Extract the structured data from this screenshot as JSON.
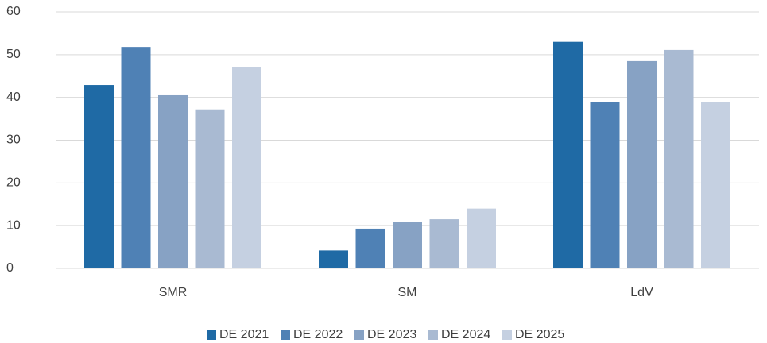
{
  "chart_data": {
    "type": "bar",
    "categories": [
      "SMR",
      "SM",
      "LdV"
    ],
    "series": [
      {
        "name": "DE 2021",
        "color": "#1f6aa5",
        "values": [
          42.9,
          4.2,
          53
        ]
      },
      {
        "name": "DE 2022",
        "color": "#4f81b5",
        "values": [
          51.8,
          9.3,
          38.9
        ]
      },
      {
        "name": "DE 2023",
        "color": "#87a2c4",
        "values": [
          40.5,
          10.8,
          48.5
        ]
      },
      {
        "name": "DE 2024",
        "color": "#a9bad2",
        "values": [
          37.2,
          11.5,
          51.1
        ]
      },
      {
        "name": "DE 2025",
        "color": "#c5d0e1",
        "values": [
          47,
          14,
          39
        ]
      }
    ],
    "ylim": [
      0,
      60
    ],
    "yticks": [
      0,
      10,
      20,
      30,
      40,
      50,
      60
    ],
    "grid": true,
    "legend": "bottom"
  }
}
